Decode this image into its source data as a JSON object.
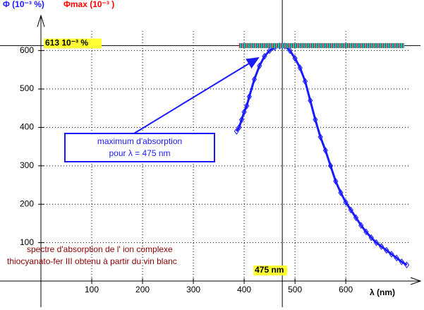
{
  "chart_data": {
    "type": "line",
    "y_label": "Φ (10⁻³ %)",
    "y2_label": "Φmax (10⁻³ )",
    "x_label": "λ (nm)",
    "xlim": [
      0,
      740
    ],
    "ylim": [
      0,
      660
    ],
    "xticks": [
      100,
      200,
      300,
      400,
      500,
      600
    ],
    "yticks": [
      100,
      200,
      300,
      400,
      500,
      600
    ],
    "grid": true,
    "series": [
      {
        "name": "Φ (10⁻³ %)",
        "color": "#1a1aff",
        "x": [
          385,
          390,
          395,
          400,
          405,
          410,
          420,
          430,
          440,
          450,
          460,
          470,
          475,
          480,
          490,
          500,
          510,
          520,
          530,
          540,
          550,
          560,
          570,
          580,
          590,
          600,
          610,
          620,
          630,
          640,
          650,
          660,
          670,
          680,
          690,
          700,
          710,
          720
        ],
        "values": [
          390,
          400,
          420,
          440,
          456,
          480,
          525,
          560,
          585,
          600,
          608,
          612,
          613,
          612,
          600,
          580,
          555,
          520,
          470,
          420,
          375,
          340,
          300,
          260,
          230,
          205,
          185,
          165,
          145,
          128,
          113,
          100,
          90,
          80,
          70,
          60,
          50,
          42
        ]
      },
      {
        "name": "Φmax (10⁻³ )",
        "color": "#ff0000",
        "x": [
          390,
          715
        ],
        "values": [
          613,
          613
        ]
      }
    ],
    "annotations": {
      "max_value": "613 10⁻³ %",
      "max_wavelength": "475 nm",
      "box_line1": "maximum d'absorption",
      "box_line2": "pour λ = 475 nm",
      "caption_line1": "spectre d'absorption de l' ion complexe",
      "caption_line2": "thiocyanato-fer III obtenu à partir du vin blanc"
    },
    "crosshair": {
      "x": 475,
      "y": 613
    }
  }
}
